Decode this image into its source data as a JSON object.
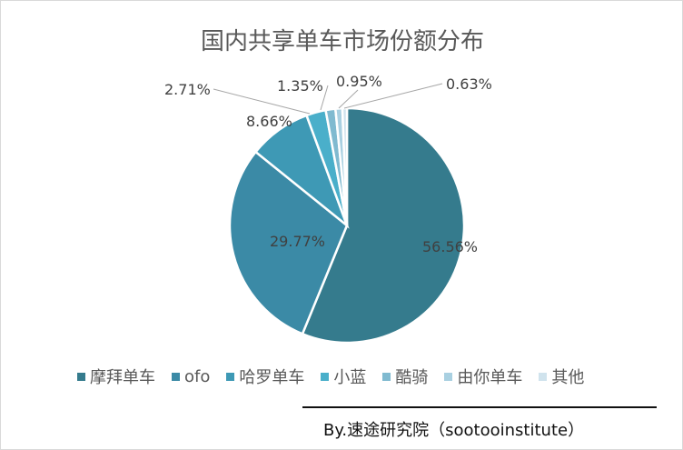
{
  "chart_data": {
    "type": "pie",
    "title": "国内共享单车市场份额分布",
    "categories": [
      "摩拜单车",
      "ofo",
      "哈罗单车",
      "小蓝",
      "酷骑",
      "由你单车",
      "其他"
    ],
    "values": [
      56.56,
      29.77,
      8.66,
      2.71,
      1.35,
      0.95,
      0.63
    ],
    "data_labels": [
      "56.56%",
      "29.77%",
      "8.66%",
      "2.71%",
      "1.35%",
      "0.95%",
      "0.63%"
    ],
    "colors": [
      "#357b8d",
      "#3b8aa6",
      "#3e99b5",
      "#4aafca",
      "#80bad0",
      "#a9d0e1",
      "#d0e3ed"
    ],
    "legend_position": "bottom",
    "start_angle": "top, clockwise"
  },
  "credit": "By.速途研究院（sootooinstitute）"
}
